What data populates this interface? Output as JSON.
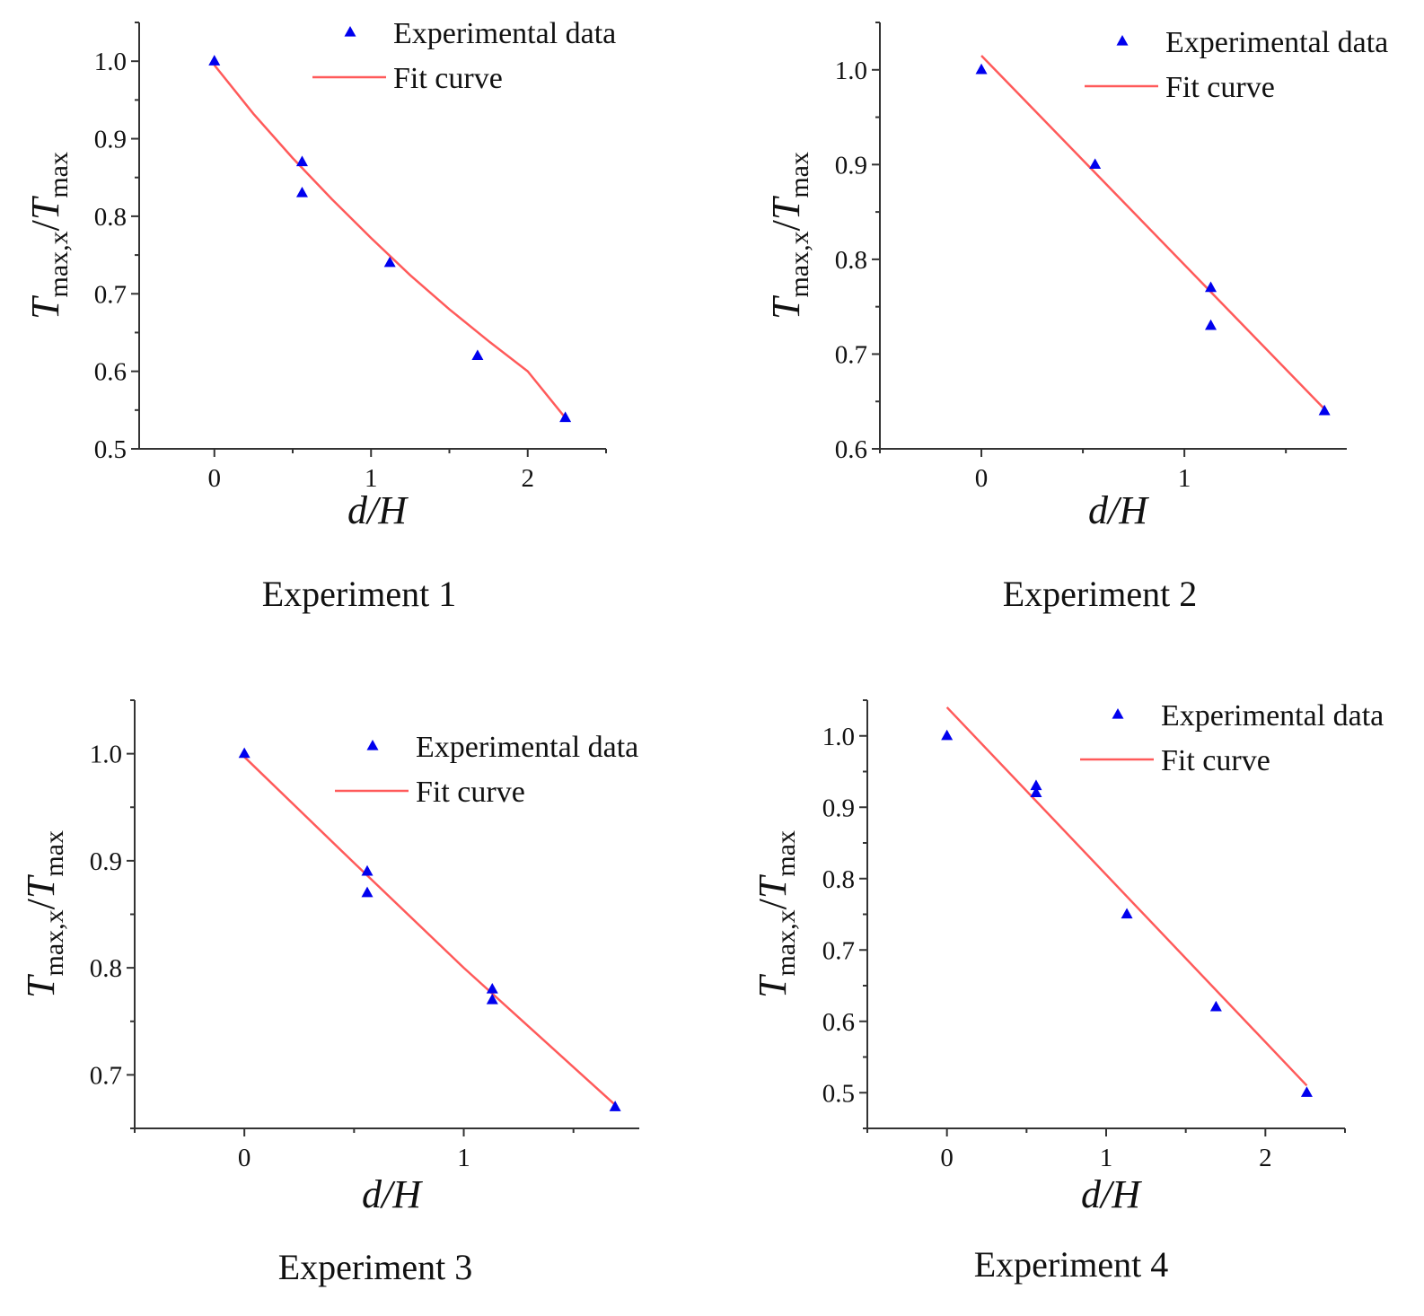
{
  "chart_data": [
    {
      "type": "scatter",
      "caption": "Experiment 1",
      "xlabel": "d/H",
      "ylabel": {
        "main": "T",
        "sub1": "max,x",
        "slash": "/",
        "main2": "T",
        "sub2": "max"
      },
      "xlim": [
        -0.48,
        2.5
      ],
      "ylim": [
        0.5,
        1.05
      ],
      "xticks": [
        0,
        1,
        2
      ],
      "xtick_labels": [
        "0",
        "1",
        "2"
      ],
      "yticks": [
        0.5,
        0.6,
        0.7,
        0.8,
        0.9,
        1.0
      ],
      "ytick_labels": [
        "0.5",
        "0.6",
        "0.7",
        "0.8",
        "0.9",
        "1.0"
      ],
      "legend": {
        "placement": "top-right",
        "data_label": "Experimental data",
        "fit_label": "Fit curve"
      },
      "series": [
        {
          "name": "Experimental data",
          "kind": "scatter",
          "x": [
            0,
            0.56,
            0.56,
            1.12,
            1.68,
            2.24
          ],
          "y": [
            1.0,
            0.87,
            0.83,
            0.74,
            0.62,
            0.54
          ]
        },
        {
          "name": "Fit curve",
          "kind": "line",
          "x": [
            0,
            0.25,
            0.5,
            0.75,
            1.0,
            1.25,
            1.5,
            1.75,
            2.0,
            2.24
          ],
          "y": [
            0.995,
            0.932,
            0.875,
            0.822,
            0.772,
            0.724,
            0.68,
            0.639,
            0.6,
            0.54
          ]
        }
      ]
    },
    {
      "type": "scatter",
      "caption": "Experiment 2",
      "xlabel": "d/H",
      "ylabel": {
        "main": "T",
        "sub1": "max,x",
        "slash": "/",
        "main2": "T",
        "sub2": "max"
      },
      "xlim": [
        -0.5,
        1.8
      ],
      "ylim": [
        0.6,
        1.05
      ],
      "xticks": [
        0,
        1
      ],
      "xtick_labels": [
        "0",
        "1"
      ],
      "yticks": [
        0.6,
        0.7,
        0.8,
        0.9,
        1.0
      ],
      "ytick_labels": [
        "0.6",
        "0.7",
        "0.8",
        "0.9",
        "1.0"
      ],
      "legend": {
        "placement": "top-right",
        "data_label": "Experimental data",
        "fit_label": "Fit curve"
      },
      "series": [
        {
          "name": "Experimental data",
          "kind": "scatter",
          "x": [
            0,
            0.56,
            1.13,
            1.13,
            1.69
          ],
          "y": [
            1.0,
            0.9,
            0.77,
            0.73,
            0.64
          ]
        },
        {
          "name": "Fit curve",
          "kind": "line",
          "x": [
            0,
            1.69
          ],
          "y": [
            1.015,
            0.642
          ]
        }
      ]
    },
    {
      "type": "scatter",
      "caption": "Experiment 3",
      "xlabel": "d/H",
      "ylabel": {
        "main": "T",
        "sub1": "max,x",
        "slash": "/",
        "main2": "T",
        "sub2": "max"
      },
      "xlim": [
        -0.5,
        1.8
      ],
      "ylim": [
        0.65,
        1.05
      ],
      "xticks": [
        0,
        1
      ],
      "xtick_labels": [
        "0",
        "1"
      ],
      "yticks": [
        0.7,
        0.8,
        0.9,
        1.0
      ],
      "ytick_labels": [
        "0.7",
        "0.8",
        "0.9",
        "1.0"
      ],
      "legend": {
        "placement": "top-right",
        "data_label": "Experimental data",
        "fit_label": "Fit curve"
      },
      "series": [
        {
          "name": "Experimental data",
          "kind": "scatter",
          "x": [
            0,
            0.56,
            0.56,
            1.13,
            1.13,
            1.69
          ],
          "y": [
            1.0,
            0.89,
            0.87,
            0.78,
            0.77,
            0.67
          ]
        },
        {
          "name": "Fit curve",
          "kind": "line",
          "x": [
            0,
            0.5,
            1.0,
            1.69
          ],
          "y": [
            0.997,
            0.898,
            0.8,
            0.672
          ]
        }
      ]
    },
    {
      "type": "scatter",
      "caption": "Experiment 4",
      "xlabel": "d/H",
      "ylabel": {
        "main": "T",
        "sub1": "max,x",
        "slash": "/",
        "main2": "T",
        "sub2": "max"
      },
      "xlim": [
        -0.5,
        2.5
      ],
      "ylim": [
        0.45,
        1.05
      ],
      "xticks": [
        0,
        1,
        2
      ],
      "xtick_labels": [
        "0",
        "1",
        "2"
      ],
      "yticks": [
        0.5,
        0.6,
        0.7,
        0.8,
        0.9,
        1.0
      ],
      "ytick_labels": [
        "0.5",
        "0.6",
        "0.7",
        "0.8",
        "0.9",
        "1.0"
      ],
      "legend": {
        "placement": "top-right",
        "data_label": "Experimental data",
        "fit_label": "Fit curve"
      },
      "series": [
        {
          "name": "Experimental data",
          "kind": "scatter",
          "x": [
            0,
            0.56,
            0.56,
            1.13,
            1.69,
            2.26
          ],
          "y": [
            1.0,
            0.93,
            0.92,
            0.75,
            0.62,
            0.5
          ]
        },
        {
          "name": "Fit curve",
          "kind": "line",
          "x": [
            0,
            2.26
          ],
          "y": [
            1.04,
            0.51
          ]
        }
      ]
    }
  ],
  "colors": {
    "markers": "#0000ee",
    "fit": "#ff5a5a",
    "axis": "#333333"
  }
}
